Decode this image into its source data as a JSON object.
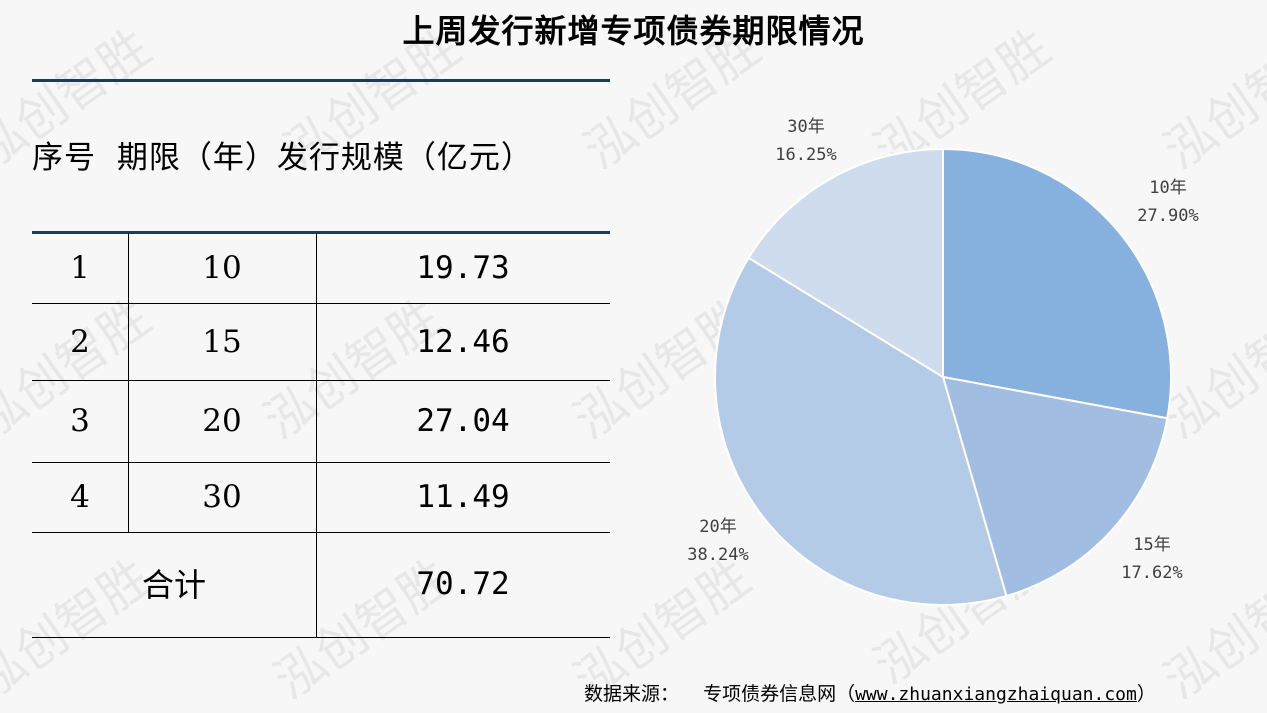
{
  "title": "上周发行新增专项债券期限情况",
  "table": {
    "header": {
      "col1": "序号",
      "col2": "期限（年）",
      "col3": "发行规模（亿元）"
    },
    "rows": [
      {
        "no": "1",
        "term": "10",
        "amount": "19.73"
      },
      {
        "no": "2",
        "term": "15",
        "amount": "12.46"
      },
      {
        "no": "3",
        "term": "20",
        "amount": "27.04"
      },
      {
        "no": "4",
        "term": "30",
        "amount": "11.49"
      }
    ],
    "total": {
      "label": "合计",
      "amount": "70.72"
    }
  },
  "chart_data": {
    "type": "pie",
    "categories": [
      "10年",
      "15年",
      "20年",
      "30年"
    ],
    "values": [
      27.9,
      17.62,
      38.24,
      16.25
    ],
    "value_labels": [
      "27.90%",
      "17.62%",
      "38.24%",
      "16.25%"
    ],
    "colors": [
      "#86b0de",
      "#a2bde2",
      "#b4cbe8",
      "#cfdcee"
    ]
  },
  "source": {
    "label": "数据来源：",
    "name": "专项债券信息网（",
    "url": "www.zhuanxiangzhaiquan.com",
    "close": "）"
  },
  "watermark": "泓创智胜"
}
